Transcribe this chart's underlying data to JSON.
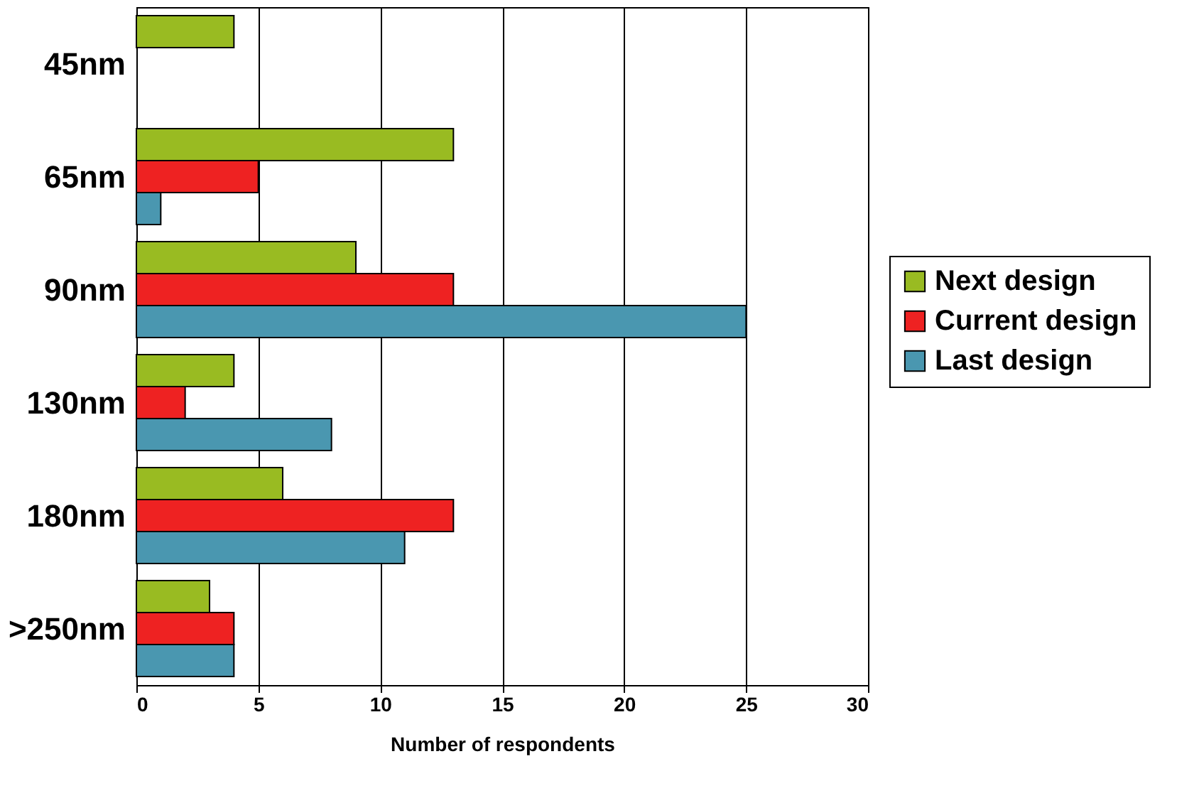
{
  "chart_data": {
    "type": "bar",
    "orientation": "horizontal",
    "xlabel": "Number of respondents",
    "categories": [
      "45nm",
      "65nm",
      "90nm",
      "130nm",
      "180nm",
      ">250nm"
    ],
    "series": [
      {
        "name": "Next design",
        "color": "#99bb22",
        "values": [
          4,
          13,
          9,
          4,
          6,
          3
        ]
      },
      {
        "name": "Current design",
        "color": "#ee2222",
        "values": [
          null,
          5,
          13,
          2,
          13,
          4
        ]
      },
      {
        "name": "Last design",
        "color": "#4a97b0",
        "values": [
          null,
          1,
          25,
          8,
          11,
          4
        ]
      }
    ],
    "xlim": [
      0,
      30
    ],
    "xticks": [
      0,
      5,
      10,
      15,
      20,
      25,
      30
    ],
    "grid": "x",
    "legend": "right"
  }
}
